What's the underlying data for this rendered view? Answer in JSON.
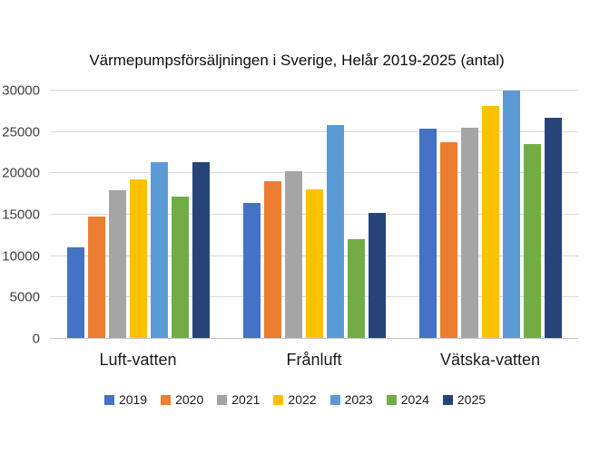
{
  "chart_data": {
    "type": "bar",
    "title": "Värmepumpsförsäljningen i Sverige, Helår 2019-2025 (antal)",
    "categories": [
      "Luft-vatten",
      "Frånluft",
      "Vätska-vatten"
    ],
    "series": [
      {
        "name": "2019",
        "color": "#4472C4",
        "values": [
          11000,
          16300,
          25300
        ]
      },
      {
        "name": "2020",
        "color": "#ED7D31",
        "values": [
          14700,
          18900,
          23700
        ]
      },
      {
        "name": "2021",
        "color": "#A5A5A5",
        "values": [
          17800,
          20100,
          25400
        ]
      },
      {
        "name": "2022",
        "color": "#FFC000",
        "values": [
          19200,
          18000,
          28000
        ]
      },
      {
        "name": "2023",
        "color": "#5B9BD5",
        "values": [
          21300,
          25700,
          29900
        ]
      },
      {
        "name": "2024",
        "color": "#70AD47",
        "values": [
          17100,
          11900,
          23400
        ]
      },
      {
        "name": "2025",
        "color": "#264478",
        "values": [
          21200,
          15100,
          26600
        ]
      }
    ],
    "xlabel": "",
    "ylabel": "",
    "ylim": [
      0,
      30000
    ],
    "yticks": [
      0,
      5000,
      10000,
      15000,
      20000,
      25000,
      30000
    ],
    "grid": true,
    "legend_position": "bottom",
    "background_color": "#ffffff",
    "gridline_color": "#d9d9d9"
  }
}
